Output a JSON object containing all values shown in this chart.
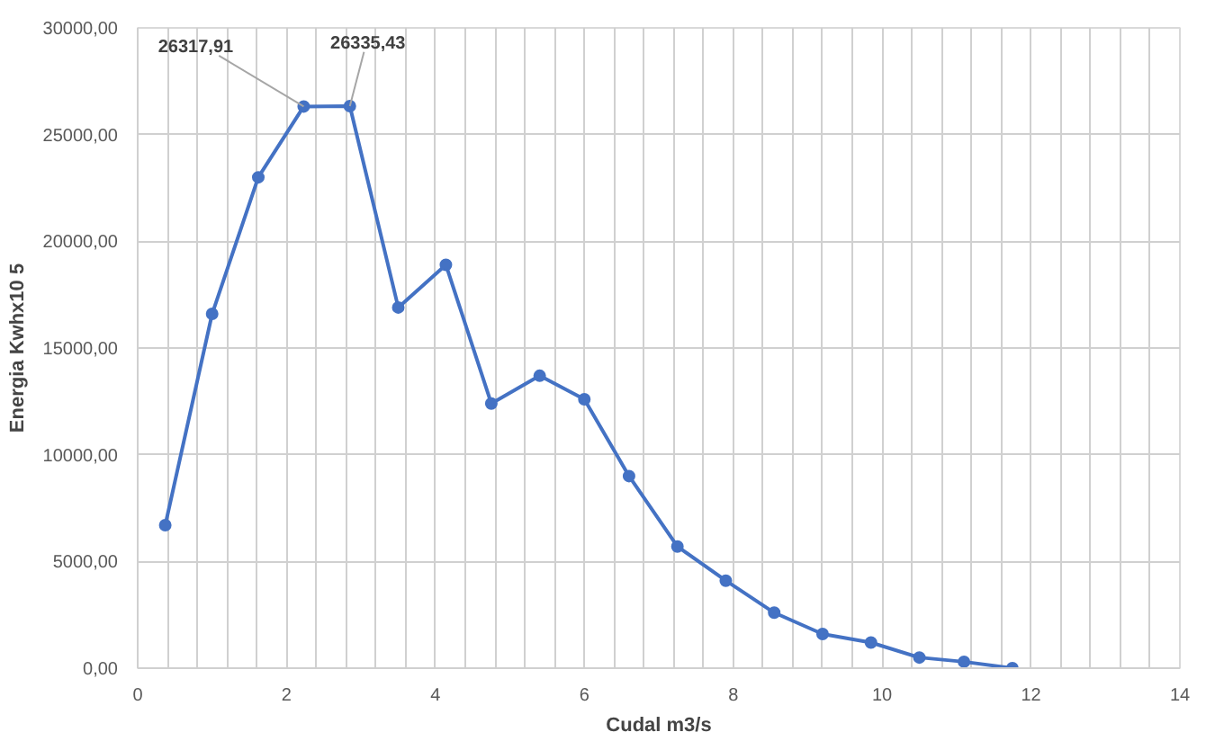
{
  "chart_data": {
    "type": "line",
    "xlabel": "Cudal m3/s",
    "ylabel": "Energia Kwhx10 5",
    "x": [
      0.37,
      1.0,
      1.62,
      2.23,
      2.85,
      3.5,
      4.14,
      4.75,
      5.4,
      6.0,
      6.6,
      7.25,
      7.9,
      8.55,
      9.2,
      9.85,
      10.5,
      11.1,
      11.75
    ],
    "series": [
      {
        "color": "#4472c4",
        "values": [
          6700,
          16600,
          23000,
          26317.91,
          26335.43,
          16900,
          18900,
          12400,
          13700,
          12600,
          9000,
          5700,
          4100,
          2600,
          1600,
          1200,
          500,
          300,
          0
        ]
      }
    ],
    "xlim": [
      0,
      14
    ],
    "xticks": [
      0,
      2,
      4,
      6,
      8,
      10,
      12,
      14
    ],
    "ylim": [
      0,
      30000
    ],
    "yticks": [
      {
        "value": 0,
        "label": "0,00"
      },
      {
        "value": 5000,
        "label": "5000,00"
      },
      {
        "value": 10000,
        "label": "10000,00"
      },
      {
        "value": 15000,
        "label": "15000,00"
      },
      {
        "value": 20000,
        "label": "20000,00"
      },
      {
        "value": 25000,
        "label": "25000,00"
      },
      {
        "value": 30000,
        "label": "30000,00"
      }
    ],
    "grid": true,
    "marker": "circle",
    "line_style": "solid",
    "annotations": [
      {
        "text": "26317,91",
        "x": 2.23,
        "y": 26317.91
      },
      {
        "text": "26335,43",
        "x": 2.85,
        "y": 26335.43
      }
    ]
  }
}
